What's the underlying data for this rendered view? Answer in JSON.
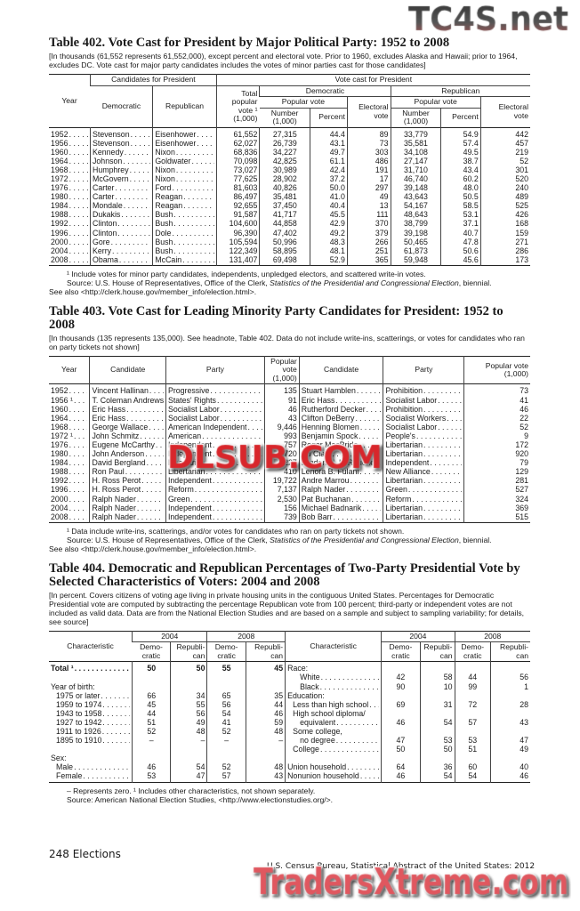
{
  "t402": {
    "title": "Table 402. Vote Cast for President by Major Political Party: 1952 to 2008",
    "headnote": "[In thousands (61,552 represents 61,552,000), except percent and electoral vote. Prior to 1960, excludes Alaska and Hawaii; prior to 1964, excludes DC. Vote cast for major party candidates includes the votes of minor parties cast for those candidates]",
    "h": {
      "year": "Year",
      "cand": "Candidates for President",
      "dem": "Democratic",
      "rep": "Republican",
      "vote": "Vote cast for President",
      "total": "Total popular vote ¹ (1,000)",
      "democratic": "Democratic",
      "republican": "Republican",
      "pop": "Popular vote",
      "pop2": "Popular vote",
      "num": "Number (1,000)",
      "pct": "Percent",
      "elect": "Electoral vote",
      "num2": "Number (1,000)",
      "pct2": "Percent",
      "elect2": "Electoral vote"
    },
    "rows": [
      [
        "1952",
        "Stevenson",
        "Eisenhower",
        "61,552",
        "27,315",
        "44.4",
        "89",
        "33,779",
        "54.9",
        "442"
      ],
      [
        "1956",
        "Stevenson",
        "Eisenhower",
        "62,027",
        "26,739",
        "43.1",
        "73",
        "35,581",
        "57.4",
        "457"
      ],
      [
        "1960",
        "Kennedy",
        "Nixon",
        "68,836",
        "34,227",
        "49.7",
        "303",
        "34,108",
        "49.5",
        "219"
      ],
      [
        "1964",
        "Johnson",
        "Goldwater",
        "70,098",
        "42,825",
        "61.1",
        "486",
        "27,147",
        "38.7",
        "52"
      ],
      [
        "1968",
        "Humphrey",
        "Nixon",
        "73,027",
        "30,989",
        "42.4",
        "191",
        "31,710",
        "43.4",
        "301"
      ],
      [
        "1972",
        "McGovern",
        "Nixon",
        "77,625",
        "28,902",
        "37.2",
        "17",
        "46,740",
        "60.2",
        "520"
      ],
      [
        "1976",
        "Carter",
        "Ford",
        "81,603",
        "40,826",
        "50.0",
        "297",
        "39,148",
        "48.0",
        "240"
      ],
      [
        "1980",
        "Carter",
        "Reagan",
        "86,497",
        "35,481",
        "41.0",
        "49",
        "43,643",
        "50.5",
        "489"
      ],
      [
        "1984",
        "Mondale",
        "Reagan",
        "92,655",
        "37,450",
        "40.4",
        "13",
        "54,167",
        "58.5",
        "525"
      ],
      [
        "1988",
        "Dukakis",
        "Bush",
        "91,587",
        "41,717",
        "45.5",
        "111",
        "48,643",
        "53.1",
        "426"
      ],
      [
        "1992",
        "Clinton",
        "Bush",
        "104,600",
        "44,858",
        "42.9",
        "370",
        "38,799",
        "37.1",
        "168"
      ],
      [
        "1996",
        "Clinton",
        "Dole",
        "96,390",
        "47,402",
        "49.2",
        "379",
        "39,198",
        "40.7",
        "159"
      ],
      [
        "2000",
        "Gore",
        "Bush",
        "105,594",
        "50,996",
        "48.3",
        "266",
        "50,465",
        "47.8",
        "271"
      ],
      [
        "2004",
        "Kerry",
        "Bush",
        "122,349",
        "58,895",
        "48.1",
        "251",
        "61,873",
        "50.6",
        "286"
      ],
      [
        "2008",
        "Obama",
        "McCain",
        "131,407",
        "69,498",
        "52.9",
        "365",
        "59,948",
        "45.6",
        "173"
      ]
    ],
    "footnote": "¹ Include votes for minor party candidates, independents, unpledged electors, and scattered write-in votes.",
    "source_a": "Source: U.S. House of Representatives, Office of the Clerk, ",
    "source_i": "Statistics of the Presidential and Congressional Election",
    "source_b": ", biennial.",
    "see": "See also <http://clerk.house.gov/member_info/election.html>."
  },
  "t403": {
    "title": "Table 403. Vote Cast for Leading Minority Party Candidates for President: 1952 to 2008",
    "headnote": "[In thousands (135 represents 135,000). See headnote, Table 402. Data do not include write-ins, scatterings, or votes for candidates who ran on party tickets not shown]",
    "h": {
      "year": "Year",
      "cand": "Candidate",
      "party": "Party",
      "vote": "Popular vote (1,000)",
      "cand2": "Candidate",
      "party2": "Party",
      "vote2": "Popular vote (1,000)"
    },
    "rows": [
      [
        "1952",
        "Vincent Hallinan",
        "Progressive",
        "135",
        "Stuart Hamblen",
        "Prohibition",
        "73"
      ],
      [
        "1956 ¹",
        "T. Coleman Andrews",
        "States' Rights",
        "91",
        "Eric Hass",
        "Socialist Labor",
        "41"
      ],
      [
        "1960",
        "Eric Hass",
        "Socialist Labor",
        "46",
        "Rutherford Decker",
        "Prohibition",
        "46"
      ],
      [
        "1964",
        "Eric Hass",
        "Socialist Labor",
        "43",
        "Clifton DeBerry",
        "Socialist Workers",
        "22"
      ],
      [
        "1968",
        "George Wallace",
        "American Independent",
        "9,446",
        "Henning Blomen",
        "Socialist Labor",
        "52"
      ],
      [
        "1972 ¹",
        "John Schmitz",
        "American",
        "993",
        "Benjamin Spock",
        "People's",
        "9"
      ],
      [
        "1976",
        "Eugene McCarthy",
        "Independent",
        "757",
        "Roger MacBride",
        "Libertarian",
        "172"
      ],
      [
        "1980",
        "John Anderson",
        "Independent",
        "5,720",
        "Ed Clark",
        "Libertarian",
        "920"
      ],
      [
        "1984",
        "David Bergland",
        "Libertarian",
        "227",
        "Lyndon H. LaRouche",
        "Independent",
        "79"
      ],
      [
        "1988",
        "Ron Paul",
        "Libertarian",
        "410",
        "Lenora B. Fulani",
        "New Alliance",
        "129"
      ],
      [
        "1992",
        "H. Ross Perot",
        "Independent",
        "19,722",
        "Andre Marrou",
        "Libertarian",
        "281"
      ],
      [
        "1996",
        "H. Ross Perot",
        "Reform",
        "7,137",
        "Ralph Nader",
        "Green",
        "527"
      ],
      [
        "2000",
        "Ralph Nader",
        "Green",
        "2,530",
        "Pat Buchanan",
        "Reform",
        "324"
      ],
      [
        "2004",
        "Ralph Nader",
        "Independent",
        "156",
        "Michael Badnarik",
        "Libertarian",
        "369"
      ],
      [
        "2008",
        "Ralph Nader",
        "Independent",
        "739",
        "Bob Barr",
        "Libertarian",
        "515"
      ]
    ],
    "footnote": "¹ Data include write-ins, scatterings, and/or votes for candidates who ran on party tickets not shown.",
    "source_a": "Source: U.S. House of Representatives, Office of the Clerk, ",
    "source_i": "Statistics of the Presidential and Congressional Election",
    "source_b": ", biennial.",
    "see": "See also <http://clerk.house.gov/member_info/election.html>."
  },
  "t404": {
    "title": "Table 404. Democratic and Republican Percentages of Two-Party Presidential Vote by Selected Characteristics of Voters: 2004 and 2008",
    "headnote": "[In percent. Covers citizens of voting age living in private housing units in the contiguous United States. Percentages for Democratic Presidential vote are computed by subtracting the percentage Republican vote from 100 percent; third-party or independent votes are not included as valid data. Data are from the National Election Studies and are based on a sample and subject to sampling variability; for details, see source]",
    "h": {
      "char": "Characteristic",
      "y1": "2004",
      "y2": "2008",
      "dem": "Demo- cratic",
      "rep": "Republi- can",
      "char2": "Characteristic"
    },
    "rows": [
      [
        {
          "t": "Total ¹",
          "bold": true,
          "ind": 0
        },
        "50",
        "50",
        "55",
        "45",
        {
          "t": "Race:",
          "dots": false,
          "ind": 0
        },
        "",
        "",
        "",
        ""
      ],
      [
        {
          "t": "",
          "dots": false
        },
        "",
        "",
        "",
        "",
        {
          "t": "White",
          "ind": 2
        },
        "42",
        "58",
        "44",
        "56"
      ],
      [
        {
          "t": "Year of birth:",
          "dots": false,
          "ind": 0
        },
        "",
        "",
        "",
        "",
        {
          "t": "Black",
          "ind": 2
        },
        "90",
        "10",
        "99",
        "1"
      ],
      [
        {
          "t": "1975 or later",
          "ind": 1
        },
        "66",
        "34",
        "65",
        "35",
        {
          "t": "Education:",
          "dots": false,
          "ind": 0
        },
        "",
        "",
        "",
        ""
      ],
      [
        {
          "t": "1959 to 1974",
          "ind": 1
        },
        "45",
        "55",
        "56",
        "44",
        {
          "t": "Less than high school",
          "ind": 1
        },
        "69",
        "31",
        "72",
        "28"
      ],
      [
        {
          "t": "1943 to 1958",
          "ind": 1
        },
        "44",
        "56",
        "54",
        "46",
        {
          "t": "High school diploma/",
          "dots": false,
          "ind": 1
        },
        "",
        "",
        "",
        ""
      ],
      [
        {
          "t": "1927 to 1942",
          "ind": 1
        },
        "51",
        "49",
        "41",
        "59",
        {
          "t": "equivalent",
          "ind": 2
        },
        "46",
        "54",
        "57",
        "43"
      ],
      [
        {
          "t": "1911 to 1926",
          "ind": 1
        },
        "52",
        "48",
        "52",
        "48",
        {
          "t": "Some college,",
          "dots": false,
          "ind": 1
        },
        "",
        "",
        "",
        ""
      ],
      [
        {
          "t": "1895 to 1910",
          "ind": 1
        },
        "–",
        "–",
        "–",
        "–",
        {
          "t": "no degree",
          "ind": 2
        },
        "47",
        "53",
        "53",
        "47"
      ],
      [
        {
          "t": "",
          "dots": false
        },
        "",
        "",
        "",
        "",
        {
          "t": "College",
          "ind": 1
        },
        "50",
        "50",
        "51",
        "49"
      ],
      [
        {
          "t": "Sex:",
          "dots": false,
          "ind": 0
        },
        "",
        "",
        "",
        "",
        {
          "t": "",
          "dots": false
        },
        "",
        "",
        "",
        ""
      ],
      [
        {
          "t": "Male",
          "ind": 1
        },
        "46",
        "54",
        "52",
        "48",
        {
          "t": "Union household",
          "ind": 0
        },
        "64",
        "36",
        "60",
        "40"
      ],
      [
        {
          "t": "Female",
          "ind": 1
        },
        "53",
        "47",
        "57",
        "43",
        {
          "t": "Nonunion household",
          "ind": 0
        },
        "46",
        "54",
        "54",
        "46"
      ]
    ],
    "footnote": "– Represents zero. ¹ Includes other characteristics, not shown separately.",
    "source": "Source: American National Election Studies, <http://www.electionstudies.org/>."
  },
  "page": {
    "number_section": "248  Elections",
    "publication": "U.S. Census Bureau, Statistical Abstract of the United States: 2012"
  },
  "watermarks": {
    "top": "TC4S.net",
    "middle": "DLSUB.COM",
    "bottom": "TradersXtreme.com"
  }
}
